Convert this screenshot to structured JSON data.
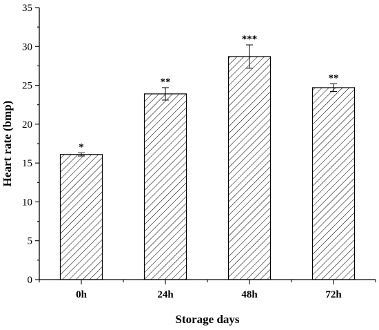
{
  "chart_data": {
    "type": "bar",
    "title": "",
    "xlabel": "Storage days",
    "ylabel": "Heart rate (bmp)",
    "categories": [
      "0h",
      "24h",
      "48h",
      "72h"
    ],
    "values": [
      16.1,
      23.9,
      28.7,
      24.7
    ],
    "errors": [
      0.2,
      0.8,
      1.5,
      0.5
    ],
    "annotations": [
      "*",
      "**",
      "***",
      "**"
    ],
    "ylim": [
      0,
      35
    ],
    "yticks": [
      "0",
      "5",
      "10",
      "15",
      "20",
      "25",
      "30",
      "35"
    ],
    "grid": false,
    "legend": "none",
    "bar_fill": "hatched",
    "colors": {
      "bar_edge": "#000000",
      "hatch": "#000000",
      "axis": "#000000"
    }
  }
}
